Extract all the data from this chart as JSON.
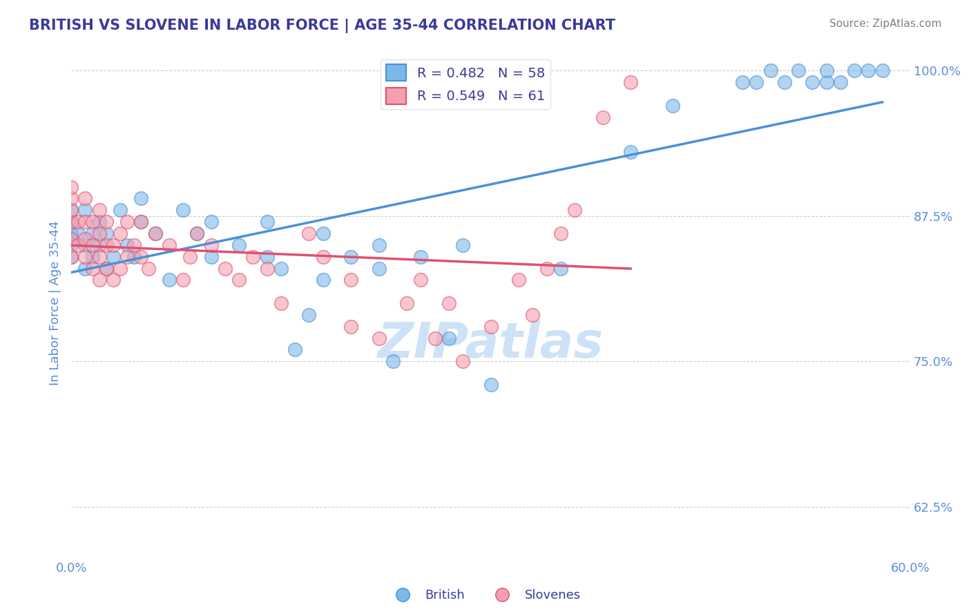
{
  "title": "BRITISH VS SLOVENE IN LABOR FORCE | AGE 35-44 CORRELATION CHART",
  "source": "Source: ZipAtlas.com",
  "ylabel": "In Labor Force | Age 35-44",
  "xlabel": "",
  "xlim": [
    0.0,
    0.6
  ],
  "ylim": [
    0.58,
    1.02
  ],
  "yticks": [
    0.625,
    0.75,
    0.875,
    1.0
  ],
  "ytick_labels": [
    "62.5%",
    "75.0%",
    "87.5%",
    "100.0%"
  ],
  "xticks": [
    0.0,
    0.1,
    0.2,
    0.3,
    0.4,
    0.5,
    0.6
  ],
  "xtick_labels": [
    "0.0%",
    "",
    "",
    "",
    "",
    "",
    "60.0%"
  ],
  "british_R": 0.482,
  "british_N": 58,
  "slovene_R": 0.549,
  "slovene_N": 61,
  "blue_color": "#7eb8e8",
  "pink_color": "#f4a0b0",
  "blue_line_color": "#4a90d9",
  "pink_line_color": "#e05070",
  "title_color": "#3a3a9a",
  "axis_color": "#5b8dd9",
  "legend_text_color": "#3a3a9a",
  "watermark_color": "#c8dff5",
  "british_x": [
    0.0,
    0.0,
    0.0,
    0.0,
    0.0,
    0.005,
    0.01,
    0.01,
    0.01,
    0.015,
    0.015,
    0.02,
    0.02,
    0.025,
    0.025,
    0.03,
    0.035,
    0.04,
    0.045,
    0.05,
    0.05,
    0.06,
    0.07,
    0.08,
    0.09,
    0.1,
    0.1,
    0.12,
    0.14,
    0.14,
    0.15,
    0.16,
    0.17,
    0.18,
    0.18,
    0.2,
    0.22,
    0.22,
    0.23,
    0.25,
    0.27,
    0.28,
    0.3,
    0.35,
    0.4,
    0.43,
    0.48,
    0.49,
    0.5,
    0.51,
    0.52,
    0.53,
    0.54,
    0.54,
    0.55,
    0.56,
    0.57,
    0.58
  ],
  "british_y": [
    0.84,
    0.85,
    0.86,
    0.87,
    0.88,
    0.86,
    0.83,
    0.85,
    0.88,
    0.84,
    0.86,
    0.85,
    0.87,
    0.83,
    0.86,
    0.84,
    0.88,
    0.85,
    0.84,
    0.87,
    0.89,
    0.86,
    0.82,
    0.88,
    0.86,
    0.84,
    0.87,
    0.85,
    0.84,
    0.87,
    0.83,
    0.76,
    0.79,
    0.82,
    0.86,
    0.84,
    0.83,
    0.85,
    0.75,
    0.84,
    0.77,
    0.85,
    0.73,
    0.83,
    0.93,
    0.97,
    0.99,
    0.99,
    1.0,
    0.99,
    1.0,
    0.99,
    0.99,
    1.0,
    0.99,
    1.0,
    1.0,
    1.0
  ],
  "slovene_x": [
    0.0,
    0.0,
    0.0,
    0.0,
    0.0,
    0.0,
    0.005,
    0.005,
    0.01,
    0.01,
    0.01,
    0.01,
    0.015,
    0.015,
    0.015,
    0.02,
    0.02,
    0.02,
    0.02,
    0.025,
    0.025,
    0.025,
    0.03,
    0.03,
    0.035,
    0.035,
    0.04,
    0.04,
    0.045,
    0.05,
    0.05,
    0.055,
    0.06,
    0.07,
    0.08,
    0.085,
    0.09,
    0.1,
    0.11,
    0.12,
    0.13,
    0.14,
    0.15,
    0.17,
    0.18,
    0.2,
    0.2,
    0.22,
    0.24,
    0.25,
    0.26,
    0.27,
    0.28,
    0.3,
    0.32,
    0.33,
    0.34,
    0.35,
    0.36,
    0.38,
    0.4
  ],
  "slovene_y": [
    0.84,
    0.855,
    0.87,
    0.88,
    0.89,
    0.9,
    0.85,
    0.87,
    0.84,
    0.855,
    0.87,
    0.89,
    0.83,
    0.85,
    0.87,
    0.82,
    0.84,
    0.86,
    0.88,
    0.83,
    0.85,
    0.87,
    0.82,
    0.85,
    0.83,
    0.86,
    0.84,
    0.87,
    0.85,
    0.84,
    0.87,
    0.83,
    0.86,
    0.85,
    0.82,
    0.84,
    0.86,
    0.85,
    0.83,
    0.82,
    0.84,
    0.83,
    0.8,
    0.86,
    0.84,
    0.78,
    0.82,
    0.77,
    0.8,
    0.82,
    0.77,
    0.8,
    0.75,
    0.78,
    0.82,
    0.79,
    0.83,
    0.86,
    0.88,
    0.96,
    0.99
  ]
}
